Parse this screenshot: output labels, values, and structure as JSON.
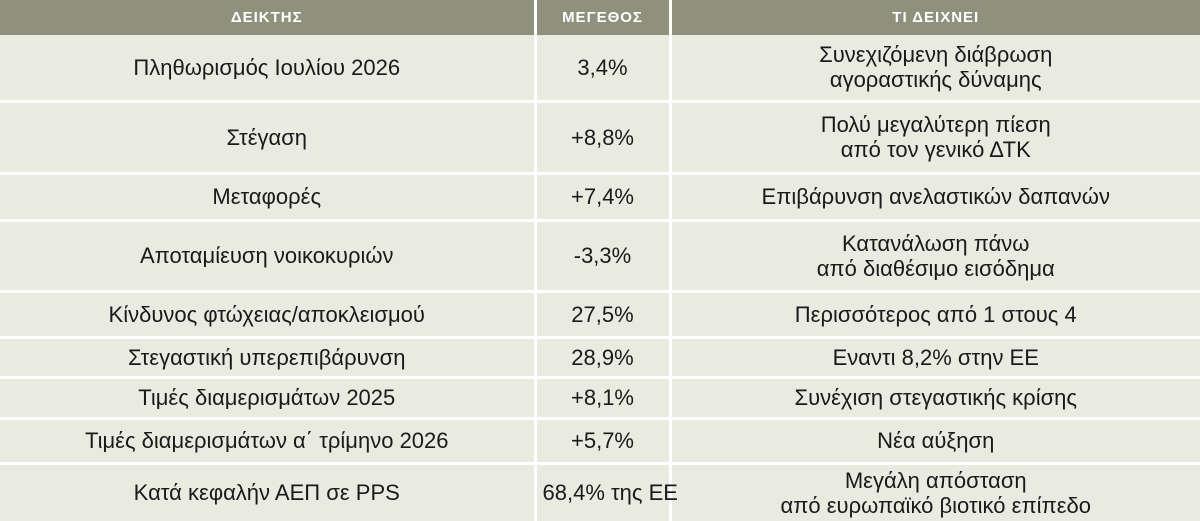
{
  "header": {
    "col_indicator": "ΔΕΙΚΤΗΣ",
    "col_value": "ΜΕΓΕΘΟΣ",
    "col_meaning": "ΤΙ ΔΕΙΧΝΕΙ"
  },
  "rows": [
    {
      "indicator": "Πληθωρισμός Ιουλίου 2026",
      "value": "3,4%",
      "meaning_1": "Συνεχιζόμενη διάβρωση",
      "meaning_2": "αγοραστικής δύναμης"
    },
    {
      "indicator": "Στέγαση",
      "value": "+8,8%",
      "meaning_1": "Πολύ μεγαλύτερη πίεση",
      "meaning_2": "από τον γενικό ΔΤΚ"
    },
    {
      "indicator": "Μεταφορές",
      "value": "+7,4%",
      "meaning_1": "Επιβάρυνση ανελαστικών δαπανών",
      "meaning_2": ""
    },
    {
      "indicator": "Αποταμίευση νοικοκυριών",
      "value": "-3,3%",
      "meaning_1": "Κατανάλωση πάνω",
      "meaning_2": "από διαθέσιμο εισόδημα"
    },
    {
      "indicator": "Κίνδυνος φτώχειας/αποκλεισμού",
      "value": "27,5%",
      "meaning_1": "Περισσότερος από 1 στους 4",
      "meaning_2": ""
    },
    {
      "indicator": "Στεγαστική υπερεπιβάρυνση",
      "value": "28,9%",
      "meaning_1": "Εναντι 8,2% στην ΕΕ",
      "meaning_2": ""
    },
    {
      "indicator": "Τιμές διαμερισμάτων 2025",
      "value": "+8,1%",
      "meaning_1": "Συνέχιση στεγαστικής κρίσης",
      "meaning_2": ""
    },
    {
      "indicator": "Τιμές διαμερισμάτων α΄ τρίμηνο 2026",
      "value": "+5,7%",
      "meaning_1": "Νέα αύξηση",
      "meaning_2": ""
    },
    {
      "indicator": "Κατά κεφαλήν ΑΕΠ σε PPS",
      "value": "68,4% της ΕΕ",
      "meaning_1": "Μεγάλη απόσταση",
      "meaning_2": "από ευρωπαϊκό βιοτικό επίπεδο"
    }
  ],
  "colors": {
    "header_bg": "#8f917c",
    "row_bg": "#e9ebe0",
    "separator": "#ffffff"
  }
}
